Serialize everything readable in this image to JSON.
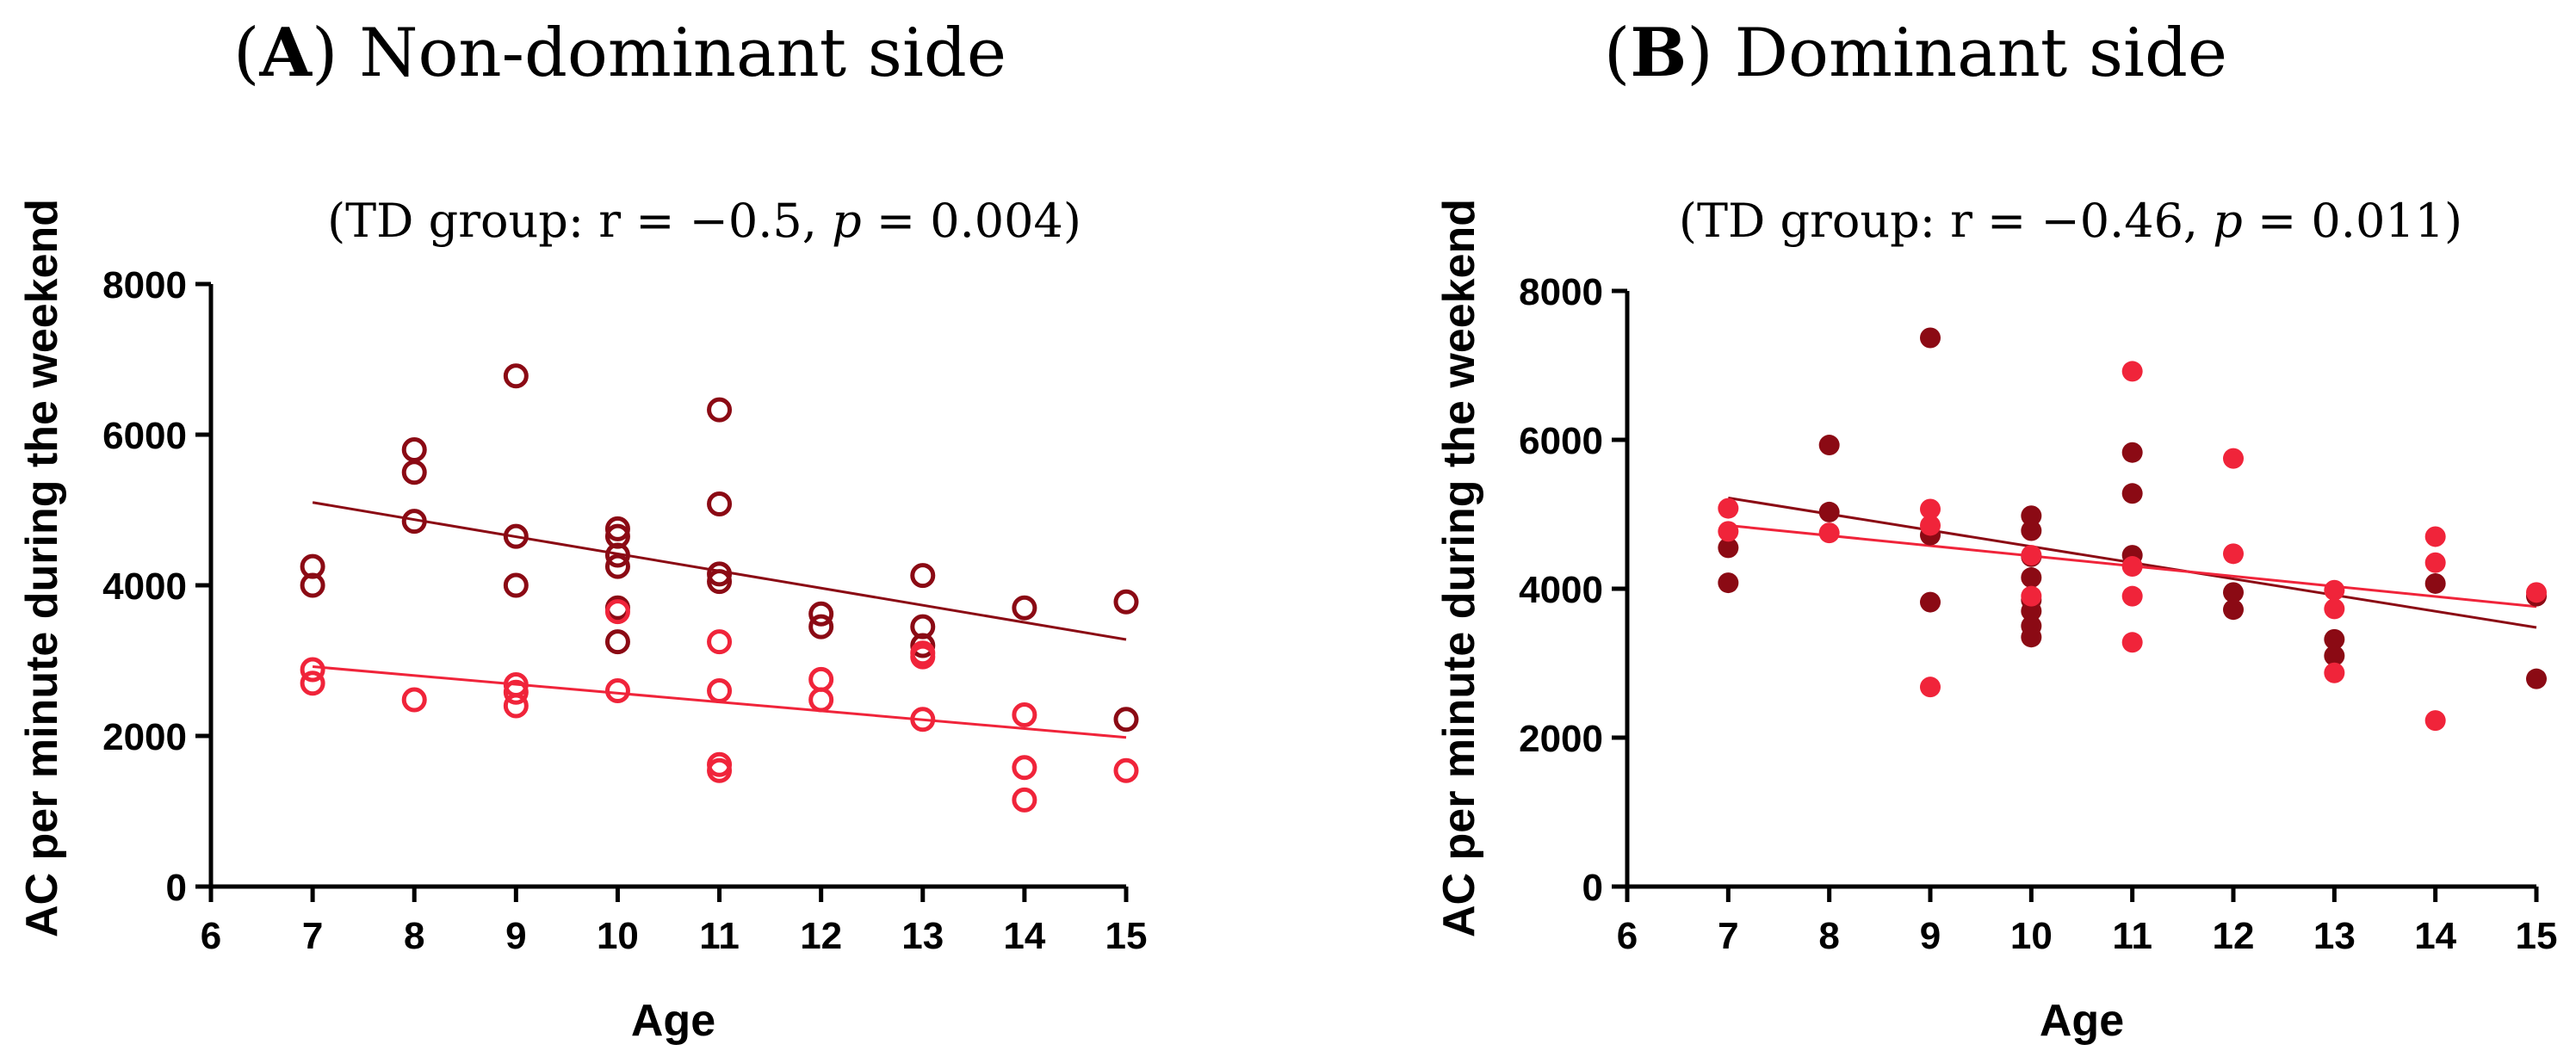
{
  "colors": {
    "dark_series": "#8B0A14",
    "light_series": "#F0243A",
    "axis": "#000000"
  },
  "chart_data": [
    {
      "type": "scatter",
      "panel_letter": "A",
      "title": "Non-dominant side",
      "subtitle_prefix": "(TD group: r = −0.5, ",
      "subtitle_p": "p",
      "subtitle_suffix": " = 0.004)",
      "xlabel": "Age",
      "ylabel": "AC per minute during the weekend",
      "xlim": [
        6,
        15
      ],
      "ylim": [
        0,
        8000
      ],
      "xticks": [
        6,
        7,
        8,
        9,
        10,
        11,
        12,
        13,
        14,
        15
      ],
      "yticks": [
        0,
        2000,
        4000,
        6000,
        8000
      ],
      "marker": "open-circle",
      "series": [
        {
          "name": "dark",
          "color": "#8B0A14",
          "points": [
            [
              7,
              4250
            ],
            [
              7,
              4000
            ],
            [
              8,
              5800
            ],
            [
              8,
              5500
            ],
            [
              8,
              4850
            ],
            [
              9,
              6780
            ],
            [
              9,
              4650
            ],
            [
              9,
              4000
            ],
            [
              10,
              4750
            ],
            [
              10,
              4650
            ],
            [
              10,
              4400
            ],
            [
              10,
              4250
            ],
            [
              10,
              3700
            ],
            [
              10,
              3250
            ],
            [
              11,
              6330
            ],
            [
              11,
              5080
            ],
            [
              11,
              4150
            ],
            [
              11,
              4050
            ],
            [
              12,
              3620
            ],
            [
              12,
              3450
            ],
            [
              13,
              4130
            ],
            [
              13,
              3450
            ],
            [
              13,
              3200
            ],
            [
              14,
              3700
            ],
            [
              15,
              3780
            ],
            [
              15,
              2220
            ]
          ],
          "fit": [
            [
              7,
              5100
            ],
            [
              15,
              3280
            ]
          ]
        },
        {
          "name": "light",
          "color": "#F0243A",
          "points": [
            [
              7,
              2880
            ],
            [
              7,
              2700
            ],
            [
              8,
              2480
            ],
            [
              9,
              2680
            ],
            [
              9,
              2580
            ],
            [
              9,
              2400
            ],
            [
              10,
              3650
            ],
            [
              10,
              2600
            ],
            [
              11,
              3250
            ],
            [
              11,
              2600
            ],
            [
              11,
              1620
            ],
            [
              11,
              1540
            ],
            [
              12,
              2750
            ],
            [
              12,
              2480
            ],
            [
              13,
              3100
            ],
            [
              13,
              3050
            ],
            [
              13,
              2220
            ],
            [
              14,
              2280
            ],
            [
              14,
              1580
            ],
            [
              14,
              1150
            ],
            [
              15,
              1540
            ]
          ],
          "fit": [
            [
              7,
              2920
            ],
            [
              15,
              1980
            ]
          ]
        }
      ]
    },
    {
      "type": "scatter",
      "panel_letter": "B",
      "title": "Dominant side",
      "subtitle_prefix": "(TD group: r = −0.46, ",
      "subtitle_p": "p",
      "subtitle_suffix": " = 0.011)",
      "xlabel": "Age",
      "ylabel": "AC per minute during the weekend",
      "xlim": [
        6,
        15
      ],
      "ylim": [
        0,
        8000
      ],
      "xticks": [
        6,
        7,
        8,
        9,
        10,
        11,
        12,
        13,
        14,
        15
      ],
      "yticks": [
        0,
        2000,
        4000,
        6000,
        8000
      ],
      "marker": "filled-circle",
      "series": [
        {
          "name": "dark",
          "color": "#8B0A14",
          "points": [
            [
              7,
              4550
            ],
            [
              7,
              4080
            ],
            [
              8,
              5930
            ],
            [
              8,
              5030
            ],
            [
              9,
              7370
            ],
            [
              9,
              4720
            ],
            [
              9,
              3820
            ],
            [
              10,
              4980
            ],
            [
              10,
              4780
            ],
            [
              10,
              4430
            ],
            [
              10,
              4150
            ],
            [
              10,
              3850
            ],
            [
              10,
              3700
            ],
            [
              10,
              3500
            ],
            [
              10,
              3350
            ],
            [
              11,
              5830
            ],
            [
              11,
              5280
            ],
            [
              11,
              4450
            ],
            [
              12,
              3950
            ],
            [
              12,
              3720
            ],
            [
              13,
              3320
            ],
            [
              13,
              3100
            ],
            [
              14,
              4070
            ],
            [
              15,
              3900
            ],
            [
              15,
              2790
            ]
          ],
          "fit": [
            [
              7,
              5220
            ],
            [
              15,
              3480
            ]
          ]
        },
        {
          "name": "light",
          "color": "#F0243A",
          "points": [
            [
              7,
              5080
            ],
            [
              7,
              4770
            ],
            [
              8,
              4750
            ],
            [
              9,
              5070
            ],
            [
              9,
              4850
            ],
            [
              9,
              2680
            ],
            [
              10,
              4450
            ],
            [
              10,
              3900
            ],
            [
              11,
              6920
            ],
            [
              11,
              4300
            ],
            [
              11,
              3900
            ],
            [
              11,
              3280
            ],
            [
              12,
              5750
            ],
            [
              12,
              4470
            ],
            [
              13,
              3980
            ],
            [
              13,
              3730
            ],
            [
              13,
              2870
            ],
            [
              14,
              4700
            ],
            [
              14,
              4350
            ],
            [
              14,
              2230
            ],
            [
              15,
              3950
            ]
          ],
          "fit": [
            [
              7,
              4850
            ],
            [
              15,
              3760
            ]
          ]
        }
      ]
    }
  ]
}
